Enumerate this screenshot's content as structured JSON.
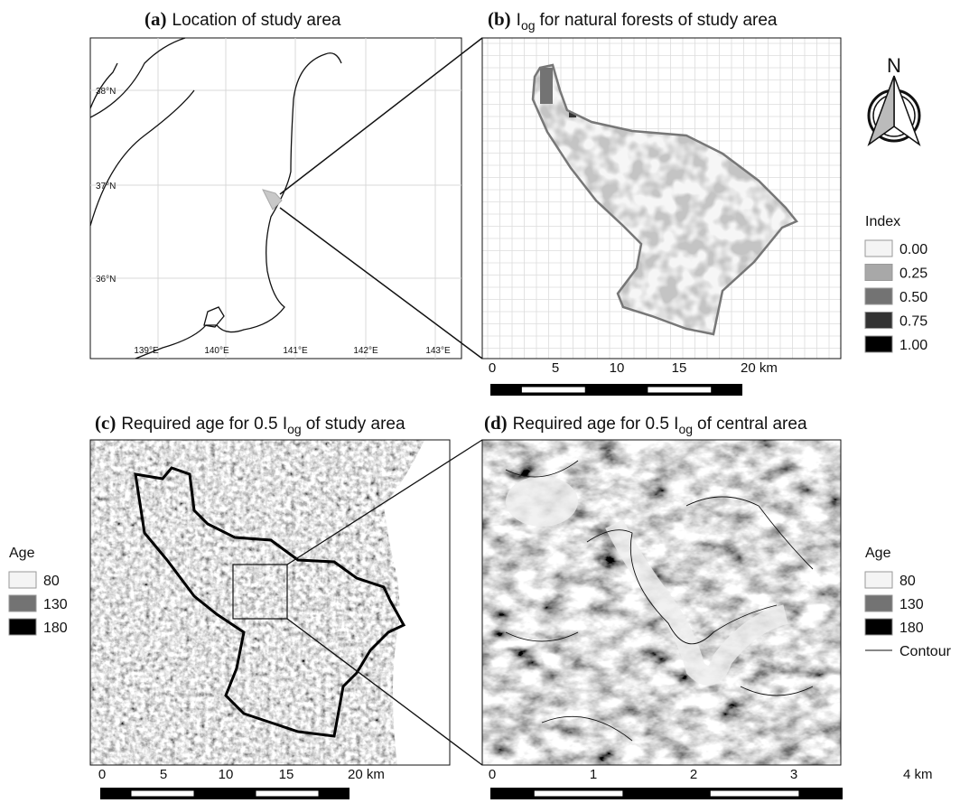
{
  "panels": [
    {
      "label": "(a)",
      "title": "Location of study area",
      "lat_labels": [
        "38°N",
        "37°N",
        "36°N"
      ],
      "lon_labels": [
        "139°E",
        "140°E",
        "141°E",
        "142°E",
        "143°E"
      ]
    },
    {
      "label": "(b)",
      "title_main": "I",
      "title_sub": "og",
      "title_rest": "for natural forests of study area",
      "scale_labels": [
        "0",
        "5",
        "10",
        "15",
        "20 km"
      ]
    },
    {
      "label": "(c)",
      "title_main": "Required age for 0.5 I",
      "title_sub": "og",
      "title_rest": "of study area",
      "scale_labels": [
        "0",
        "5",
        "10",
        "15",
        "20 km"
      ]
    },
    {
      "label": "(d)",
      "title_main": "Required age for 0.5 I",
      "title_sub": "og",
      "title_rest": "of central area",
      "scale_labels": [
        "0",
        "1",
        "2",
        "3",
        "4 km"
      ]
    }
  ],
  "north_arrow": "N",
  "legends": [
    {
      "title": "Index",
      "items": [
        {
          "label": "0.00",
          "color": "#f4f4f4"
        },
        {
          "label": "0.25",
          "color": "#a8a8a8"
        },
        {
          "label": "0.50",
          "color": "#737373"
        },
        {
          "label": "0.75",
          "color": "#333333"
        },
        {
          "label": "1.00",
          "color": "#000000"
        }
      ]
    },
    {
      "title": "Age",
      "items": [
        {
          "label": "80",
          "color": "#f4f4f4"
        },
        {
          "label": "130",
          "color": "#737373"
        },
        {
          "label": "180",
          "color": "#000000"
        }
      ]
    },
    {
      "title": "Age",
      "items": [
        {
          "label": "80",
          "color": "#f4f4f4"
        },
        {
          "label": "130",
          "color": "#737373"
        },
        {
          "label": "180",
          "color": "#000000"
        }
      ],
      "contour": "Contour"
    }
  ]
}
